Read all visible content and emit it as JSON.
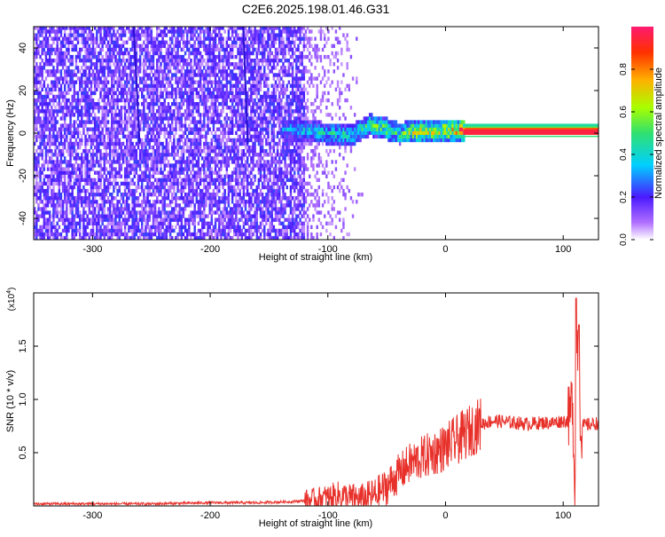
{
  "title": "C2E6.2025.198.01.46.G31",
  "colors": {
    "snr_line": "#e8302a",
    "spectro_low": "#8a4dff",
    "spectro_high": "#ff1a4a"
  },
  "chart_data": [
    {
      "type": "heatmap",
      "name": "spectrogram",
      "xlabel": "Height of straight line (km)",
      "ylabel": "Frequency (Hz)",
      "xlim": [
        -350,
        130
      ],
      "ylim": [
        -50,
        50
      ],
      "xticks": [
        -300,
        -200,
        -100,
        0,
        100
      ],
      "yticks": [
        -40,
        -20,
        0,
        20,
        40
      ],
      "colorbar": {
        "label": "Normalized spectral amplitude",
        "range": [
          0,
          1
        ],
        "ticks": [
          "0.0",
          "0.2",
          "0.4",
          "0.6",
          "0.8"
        ],
        "tick_values": [
          0.0,
          0.2,
          0.4,
          0.6,
          0.8
        ],
        "colormap": "rainbow"
      },
      "signal_track": [
        {
          "x": -140,
          "f": 1.0,
          "amp": 0.35
        },
        {
          "x": -120,
          "f": 0.5,
          "amp": 0.4
        },
        {
          "x": -100,
          "f": -1.0,
          "amp": 0.45
        },
        {
          "x": -80,
          "f": -1.5,
          "amp": 0.5
        },
        {
          "x": -65,
          "f": 3.0,
          "amp": 0.55
        },
        {
          "x": -50,
          "f": 1.0,
          "amp": 0.6
        },
        {
          "x": -40,
          "f": -1.0,
          "amp": 0.55
        },
        {
          "x": -30,
          "f": 0.0,
          "amp": 0.7
        },
        {
          "x": 0,
          "f": 0.5,
          "amp": 0.75
        },
        {
          "x": 15,
          "f": 0.5,
          "amp": 0.95
        },
        {
          "x": 130,
          "f": 0.5,
          "amp": 0.95
        }
      ]
    },
    {
      "type": "line",
      "name": "snr",
      "xlabel": "Height of straight line (km)",
      "ylabel": "SNR (10 * v/v)",
      "ylabel_scale": "(x10",
      "ylabel_scale_exp": "4",
      "ylabel_scale_close": ")",
      "xlim": [
        -350,
        130
      ],
      "ylim": [
        0,
        2.0
      ],
      "xticks": [
        -300,
        -200,
        -100,
        0,
        100
      ],
      "yticks": [
        0.5,
        1.0,
        1.5
      ],
      "ytick_labels": [
        "0.5",
        "1.0",
        "1.5"
      ],
      "series": [
        {
          "x": [
            -350,
            -300,
            -250,
            -200,
            -160,
            -130,
            -110,
            -100,
            -90,
            -80,
            -70,
            -60,
            -50,
            -40,
            -30,
            -20,
            -10,
            0,
            10,
            20,
            30,
            40,
            50,
            60,
            70,
            80,
            90,
            100,
            105,
            108,
            110,
            112,
            115,
            120,
            130
          ],
          "y": [
            0.02,
            0.02,
            0.02,
            0.03,
            0.03,
            0.04,
            0.06,
            0.08,
            0.1,
            0.07,
            0.06,
            0.1,
            0.18,
            0.3,
            0.4,
            0.45,
            0.5,
            0.55,
            0.62,
            0.7,
            0.77,
            0.8,
            0.79,
            0.78,
            0.77,
            0.78,
            0.78,
            0.8,
            0.8,
            1.0,
            0.1,
            1.6,
            0.75,
            0.76,
            0.78
          ]
        }
      ]
    }
  ]
}
